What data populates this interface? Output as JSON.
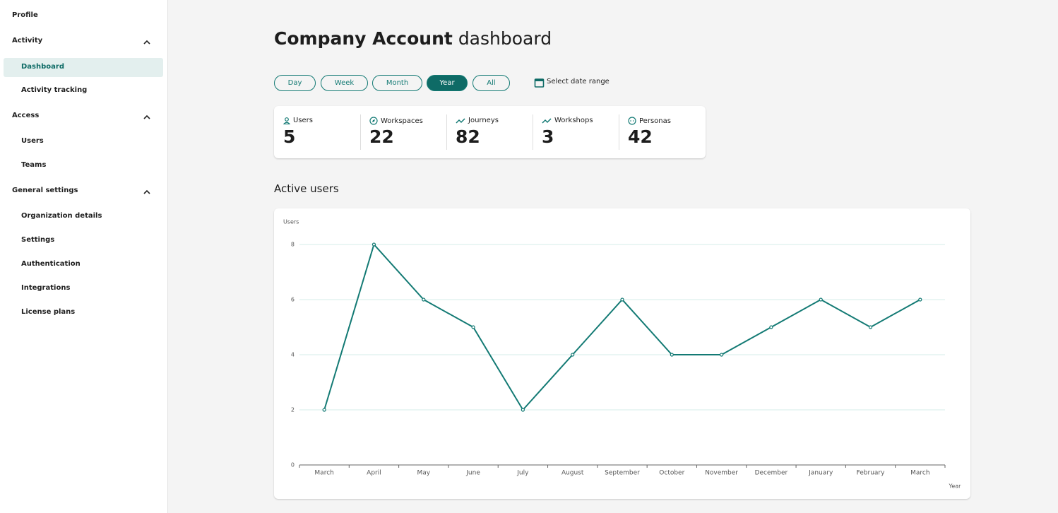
{
  "sidebar": {
    "profile": "Profile",
    "sections": [
      {
        "title": "Activity",
        "items": [
          "Dashboard",
          "Activity tracking"
        ]
      },
      {
        "title": "Access",
        "items": [
          "Users",
          "Teams"
        ]
      },
      {
        "title": "General settings",
        "items": [
          "Organization details",
          "Settings",
          "Authentication",
          "Integrations",
          "License plans"
        ]
      }
    ]
  },
  "header": {
    "title_bold": "Company Account",
    "title_rest": "dashboard"
  },
  "filters": [
    "Day",
    "Week",
    "Month",
    "Year",
    "All"
  ],
  "date_range": "Select date range",
  "stats": [
    {
      "label": "Users",
      "value": 5
    },
    {
      "label": "Workspaces",
      "value": 22
    },
    {
      "label": "Journeys",
      "value": 82
    },
    {
      "label": "Workshops",
      "value": 3
    },
    {
      "label": "Personas",
      "value": 42
    }
  ],
  "section_title": "Active users",
  "chart_data": {
    "type": "line",
    "y_label": "Users",
    "x_label": "Year",
    "categories": [
      "March",
      "April",
      "May",
      "June",
      "July",
      "August",
      "September",
      "October",
      "November",
      "December",
      "January",
      "February",
      "March"
    ],
    "values": [
      2,
      8,
      6,
      5,
      2,
      4,
      6,
      4,
      4,
      5,
      6,
      5,
      6
    ],
    "color": "#137a74",
    "ylim": [
      0,
      8
    ],
    "yticks": [
      0,
      2,
      4,
      6,
      8
    ],
    "grid": true
  }
}
